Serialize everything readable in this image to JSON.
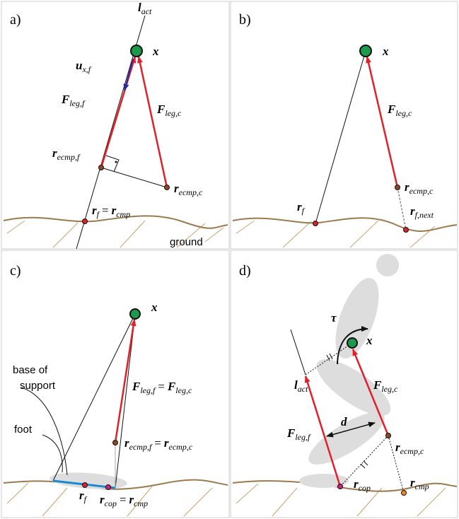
{
  "panels": [
    {
      "tag": "a)",
      "labels": [
        {
          "parts": [
            {
              "text": "l",
              "sub": "act"
            }
          ]
        },
        {
          "parts": [
            {
              "text": "x"
            }
          ]
        },
        {
          "parts": [
            {
              "text": "u",
              "sub": "x,f"
            }
          ]
        },
        {
          "parts": [
            {
              "text": "F",
              "sub": "leg,f"
            }
          ]
        },
        {
          "parts": [
            {
              "text": "F",
              "sub": "leg,c"
            }
          ]
        },
        {
          "parts": [
            {
              "text": "r",
              "sub": "ecmp,f"
            }
          ]
        },
        {
          "parts": [
            {
              "text": "r",
              "sub": "ecmp,c"
            }
          ]
        },
        {
          "parts": [
            {
              "text": "r",
              "sub": "f"
            },
            {
              "text": "="
            },
            {
              "text": "r",
              "sub": "cmp"
            }
          ]
        }
      ],
      "notes": [
        "ground"
      ]
    },
    {
      "tag": "b)",
      "labels": [
        {
          "parts": [
            {
              "text": "x"
            }
          ]
        },
        {
          "parts": [
            {
              "text": "F",
              "sub": "leg,c"
            }
          ]
        },
        {
          "parts": [
            {
              "text": "r",
              "sub": "ecmp,c"
            }
          ]
        },
        {
          "parts": [
            {
              "text": "r",
              "sub": "f"
            }
          ]
        },
        {
          "parts": [
            {
              "text": "r",
              "sub": "f,next"
            }
          ]
        }
      ],
      "notes": []
    },
    {
      "tag": "c)",
      "labels": [
        {
          "parts": [
            {
              "text": "x"
            }
          ]
        },
        {
          "parts": [
            {
              "text": "F",
              "sub": "leg,f"
            },
            {
              "text": "="
            },
            {
              "text": "F",
              "sub": "leg,c"
            }
          ]
        },
        {
          "parts": [
            {
              "text": "r",
              "sub": "ecmp,f"
            },
            {
              "text": "="
            },
            {
              "text": "r",
              "sub": "ecmp,c"
            }
          ]
        },
        {
          "parts": [
            {
              "text": "r",
              "sub": "f"
            }
          ]
        },
        {
          "parts": [
            {
              "text": "r",
              "sub": "cop"
            },
            {
              "text": "="
            },
            {
              "text": "r",
              "sub": "cmp"
            }
          ]
        }
      ],
      "notes": [
        "base of",
        "support",
        "foot"
      ]
    },
    {
      "tag": "d)",
      "labels": [
        {
          "parts": [
            {
              "text": "τ"
            }
          ]
        },
        {
          "parts": [
            {
              "text": "x"
            }
          ]
        },
        {
          "parts": [
            {
              "text": "l",
              "sub": "act"
            }
          ]
        },
        {
          "parts": [
            {
              "text": "F",
              "sub": "leg,c"
            }
          ]
        },
        {
          "parts": [
            {
              "text": "d"
            }
          ]
        },
        {
          "parts": [
            {
              "text": "F",
              "sub": "leg,f"
            }
          ]
        },
        {
          "parts": [
            {
              "text": "r",
              "sub": "ecmp,c"
            }
          ]
        },
        {
          "parts": [
            {
              "text": "r",
              "sub": "cop"
            }
          ]
        },
        {
          "parts": [
            {
              "text": "r",
              "sub": "cmp"
            }
          ]
        }
      ],
      "notes": []
    }
  ]
}
